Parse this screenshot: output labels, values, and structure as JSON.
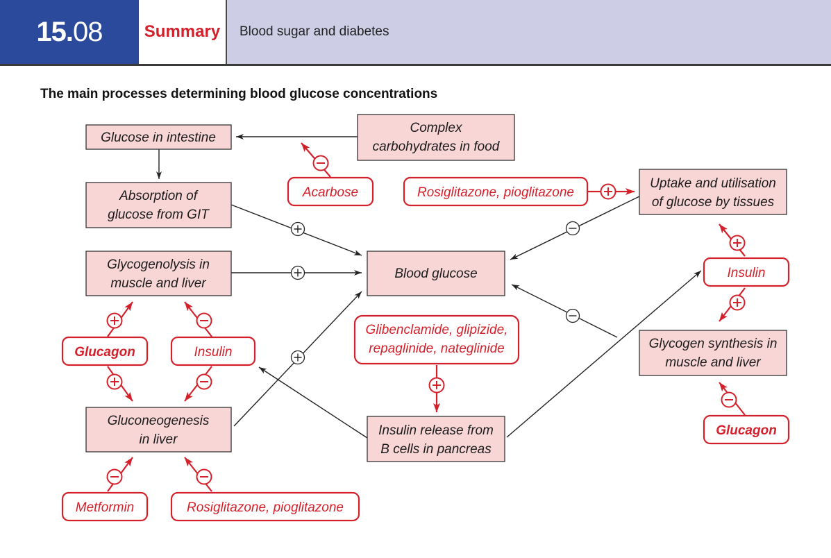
{
  "header": {
    "number_bold": "15.",
    "number_rest": "08",
    "section": "Summary",
    "topic": "Blood sugar and diabetes"
  },
  "title": "The main processes determining blood glucose concentrations",
  "colors": {
    "accent_red": "#d4202a",
    "box_fill": "#f9d6d6",
    "header_blue": "#2b4a9c",
    "header_lavender": "#cdcde6"
  },
  "boxes": {
    "glucose_intestine": [
      "Glucose in intestine"
    ],
    "complex_carbs": [
      "Complex",
      "carbohydrates in food"
    ],
    "absorption": [
      "Absorption of",
      "glucose from GIT"
    ],
    "glycogenolysis": [
      "Glycogenolysis in",
      "muscle and liver"
    ],
    "blood_glucose": [
      "Blood glucose"
    ],
    "uptake": [
      "Uptake and utilisation",
      "of glucose by tissues"
    ],
    "glycogen_synthesis": [
      "Glycogen synthesis in",
      "muscle and liver"
    ],
    "gluconeogenesis": [
      "Gluconeogenesis",
      "in liver"
    ],
    "insulin_release": [
      "Insulin release from",
      "B cells in pancreas"
    ]
  },
  "drugs": {
    "acarbose": [
      "Acarbose"
    ],
    "rosi_top": [
      "Rosiglitazone, pioglitazone"
    ],
    "glucagon_left": [
      "Glucagon"
    ],
    "insulin_left": [
      "Insulin"
    ],
    "sulfonylureas": [
      "Glibenclamide, glipizide,",
      "repaglinide, nateglinide"
    ],
    "insulin_right": [
      "Insulin"
    ],
    "glucagon_right": [
      "Glucagon"
    ],
    "metformin": [
      "Metformin"
    ],
    "rosi_bottom": [
      "Rosiglitazone, pioglitazone"
    ]
  }
}
